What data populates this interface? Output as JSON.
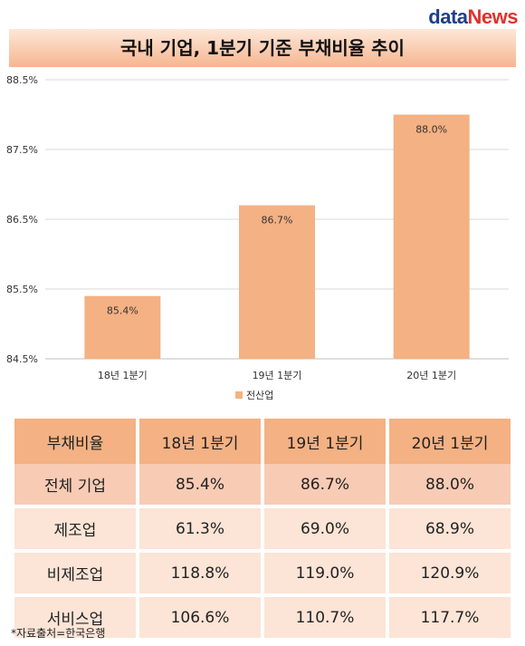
{
  "logo": {
    "part1": "data",
    "part2": "News"
  },
  "chart_data": {
    "type": "bar",
    "title": "국내 기업, 1분기 기준 부채비율 추이",
    "categories": [
      "18년 1분기",
      "19년 1분기",
      "20년 1분기"
    ],
    "series": [
      {
        "name": "전산업",
        "values": [
          85.4,
          86.7,
          88.0
        ],
        "color": "#f4b183"
      }
    ],
    "data_labels": [
      "85.4%",
      "86.7%",
      "88.0%"
    ],
    "yticks": [
      "84.5%",
      "85.5%",
      "86.5%",
      "87.5%",
      "88.5%"
    ],
    "ylim": [
      84.5,
      88.5
    ],
    "grid": true,
    "legend": "bottom"
  },
  "table": {
    "headers": [
      "부채비율",
      "18년 1분기",
      "19년 1분기",
      "20년 1분기"
    ],
    "rows": [
      [
        "전체 기업",
        "85.4%",
        "86.7%",
        "88.0%"
      ],
      [
        "제조업",
        "61.3%",
        "69.0%",
        "68.9%"
      ],
      [
        "비제조업",
        "118.8%",
        "119.0%",
        "120.9%"
      ],
      [
        "서비스업",
        "106.6%",
        "110.7%",
        "117.7%"
      ]
    ]
  },
  "source_note": "*자료출처=한국은행"
}
